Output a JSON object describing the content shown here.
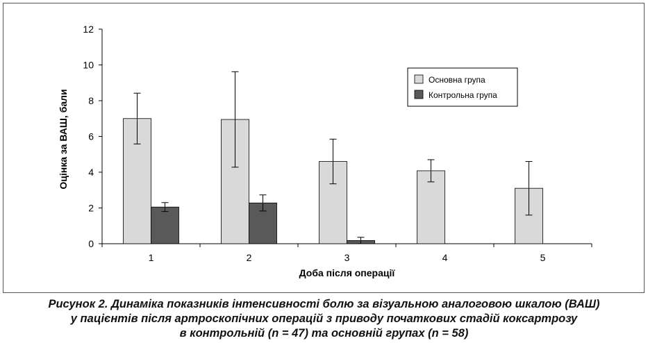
{
  "chart_data": {
    "type": "bar",
    "xlabel": "Доба після операції",
    "ylabel": "Оцінка за ВАШ, бали",
    "ylim": [
      0,
      12
    ],
    "yticks": [
      0,
      2,
      4,
      6,
      8,
      10,
      12
    ],
    "categories": [
      "1",
      "2",
      "3",
      "4",
      "5"
    ],
    "grid": false,
    "legend_position": "top-right",
    "series": [
      {
        "name": "Основна група",
        "color": "#d9d9d9",
        "values": [
          7.0,
          6.95,
          4.6,
          4.08,
          3.1
        ],
        "errors": [
          1.42,
          2.67,
          1.25,
          0.62,
          1.5
        ]
      },
      {
        "name": "Контрольна група",
        "color": "#595959",
        "values": [
          2.05,
          2.28,
          0.18,
          null,
          null
        ],
        "errors": [
          0.25,
          0.45,
          0.18,
          null,
          null
        ]
      }
    ]
  },
  "caption": {
    "line1": "Рисунок 2. Динаміка показників інтенсивності болю за візуальною аналоговою шкалою (ВАШ)",
    "line2": "у пацієнтів після артроскопічних операцій з приводу початкових стадій коксартрозу",
    "line3": "в контрольній (n = 47) та основній групах (n = 58)"
  }
}
